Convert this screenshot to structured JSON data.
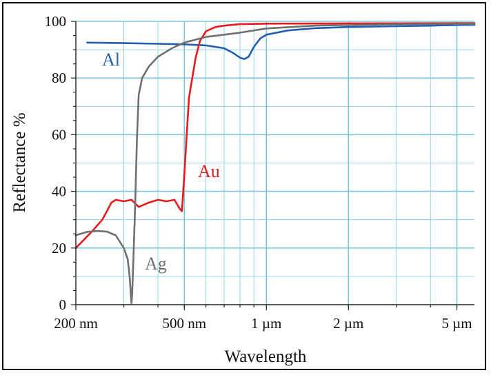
{
  "chart_data": {
    "type": "line",
    "xlabel": "Wavelength",
    "ylabel": "Reflectance %",
    "x_scale": "log",
    "x_unit": "nm",
    "xlim": [
      200,
      5800
    ],
    "ylim": [
      0,
      100
    ],
    "x_ticks": [
      {
        "value": 200,
        "label": "200 nm"
      },
      {
        "value": 500,
        "label": "500 nm"
      },
      {
        "value": 1000,
        "label": "1 µm"
      },
      {
        "value": 2000,
        "label": "2 µm"
      },
      {
        "value": 5000,
        "label": "5 µm"
      }
    ],
    "y_ticks": [
      0,
      20,
      40,
      60,
      80,
      100
    ],
    "grid": true,
    "grid_color": "#7ec8dc",
    "series": [
      {
        "name": "Al",
        "color": "#1f5fb0",
        "x": [
          220,
          300,
          400,
          500,
          600,
          700,
          750,
          800,
          830,
          860,
          900,
          950,
          1000,
          1200,
          1500,
          2000,
          3000,
          4000,
          5000,
          5800
        ],
        "y": [
          92.5,
          92.3,
          92.1,
          91.9,
          91.5,
          90.5,
          89.0,
          87.2,
          86.7,
          87.5,
          91.0,
          94.0,
          95.3,
          96.8,
          97.6,
          98.0,
          98.3,
          98.5,
          98.7,
          98.8
        ]
      },
      {
        "name": "Au",
        "color": "#e8191c",
        "x": [
          200,
          230,
          250,
          260,
          270,
          280,
          300,
          320,
          340,
          370,
          400,
          430,
          460,
          480,
          490,
          500,
          520,
          550,
          570,
          600,
          650,
          700,
          800,
          1000,
          2000,
          5800
        ],
        "y": [
          20,
          26,
          30,
          33,
          36,
          37,
          36.5,
          37,
          34.5,
          36,
          37,
          36.5,
          37,
          34,
          33,
          46,
          73,
          87,
          93,
          96.5,
          98,
          98.5,
          99,
          99.2,
          99.3,
          99.4
        ]
      },
      {
        "name": "Ag",
        "color": "#6f6f6f",
        "x": [
          200,
          220,
          240,
          260,
          280,
          300,
          310,
          315,
          318,
          320,
          322,
          325,
          330,
          335,
          340,
          350,
          370,
          400,
          450,
          500,
          600,
          800,
          1000,
          1500,
          3000,
          5800
        ],
        "y": [
          24.5,
          25.7,
          26,
          25.8,
          24.5,
          20,
          16,
          10,
          4,
          0.5,
          4,
          15,
          35,
          58,
          74,
          80,
          84,
          87.5,
          90.5,
          92.5,
          94.5,
          96,
          97.5,
          98.5,
          99,
          99.2
        ]
      }
    ]
  }
}
